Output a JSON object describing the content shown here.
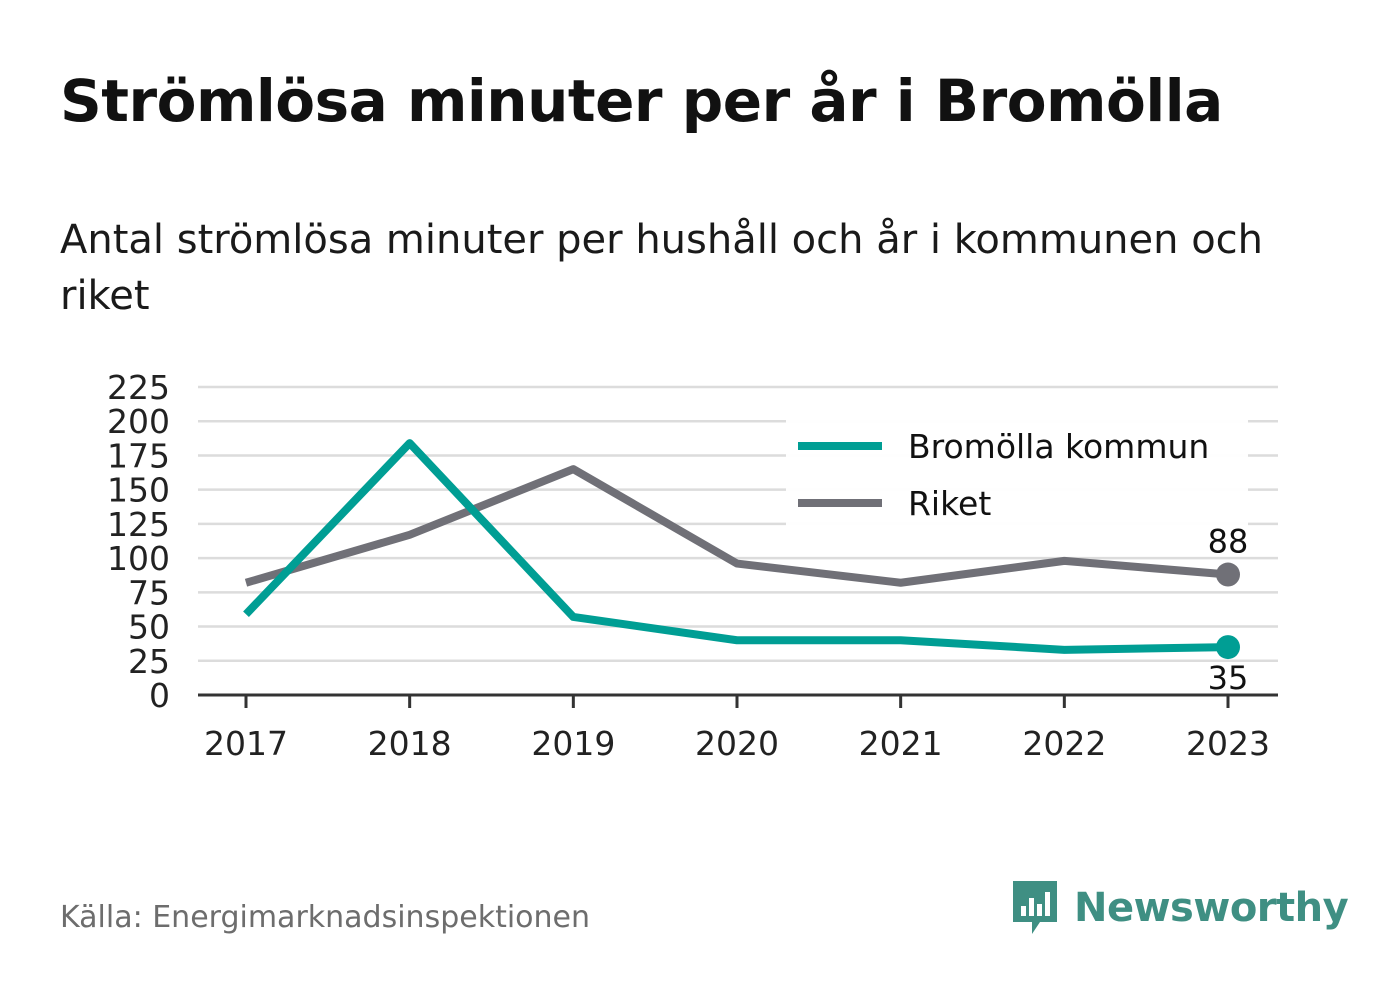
{
  "header": {
    "title": "Strömlösa minuter per år i Bromölla",
    "subtitle": "Antal strömlösa minuter per hushåll och år i kommunen och riket"
  },
  "footer": {
    "source": "Källa: Energimarknadsinspektionen",
    "brand": "Newsworthy",
    "brand_color": "#3f8f83"
  },
  "chart_data": {
    "type": "line",
    "x": [
      "2017",
      "2018",
      "2019",
      "2020",
      "2021",
      "2022",
      "2023"
    ],
    "ylim": [
      0,
      225
    ],
    "yticks": [
      0,
      25,
      50,
      75,
      100,
      125,
      150,
      175,
      200,
      225
    ],
    "grid": true,
    "legend_position": "top-right",
    "series": [
      {
        "name": "Bromölla kommun",
        "color": "#009e94",
        "values": [
          59,
          184,
          57,
          40,
          40,
          33,
          35
        ],
        "end_label": "35"
      },
      {
        "name": "Riket",
        "color": "#707077",
        "values": [
          82,
          117,
          165,
          96,
          82,
          98,
          88
        ],
        "end_label": "88"
      }
    ]
  }
}
